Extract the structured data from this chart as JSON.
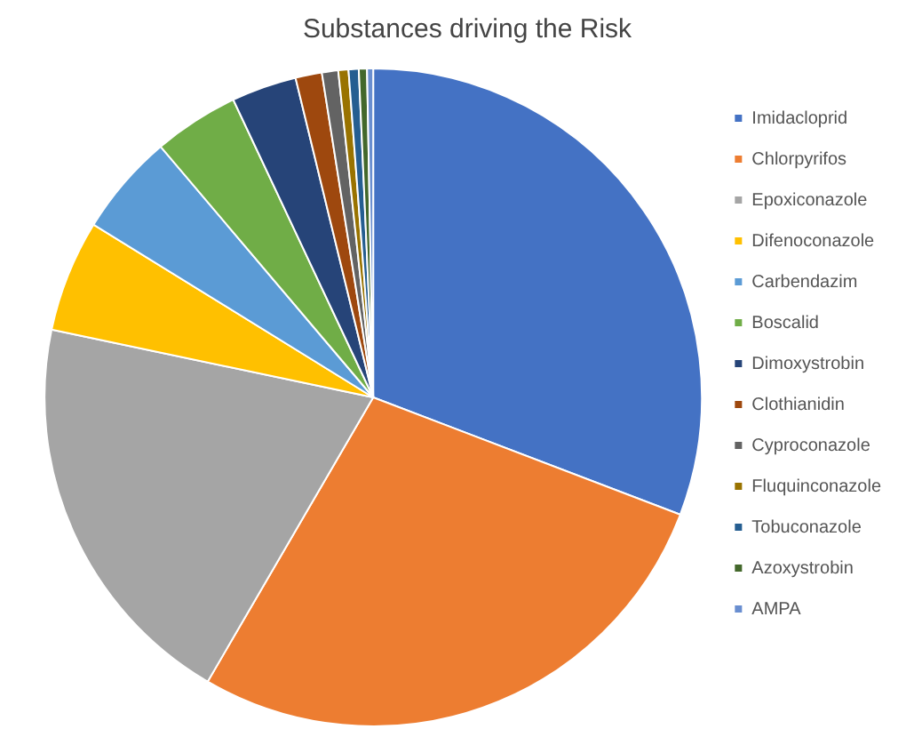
{
  "chart_data": {
    "type": "pie",
    "title": "Substances driving the Risk",
    "categories": [
      "Imidacloprid",
      "Chlorpyrifos",
      "Epoxiconazole",
      "Difenoconazole",
      "Carbendazim",
      "Boscalid",
      "Dimoxystrobin",
      "Clothianidin",
      "Cyproconazole",
      "Fluquinconazole",
      "Tobuconazole",
      "Azoxystrobin",
      "AMPA"
    ],
    "values": [
      30.8,
      27.6,
      19.9,
      5.5,
      5,
      4.2,
      3.2,
      1.3,
      0.8,
      0.5,
      0.5,
      0.4,
      0.3
    ],
    "colors": [
      "#4472c4",
      "#ed7d31",
      "#a5a5a5",
      "#ffc000",
      "#5b9bd5",
      "#70ad47",
      "#264478",
      "#9e480e",
      "#636363",
      "#997300",
      "#255e91",
      "#43682b",
      "#698ed0"
    ],
    "legend": "right"
  }
}
